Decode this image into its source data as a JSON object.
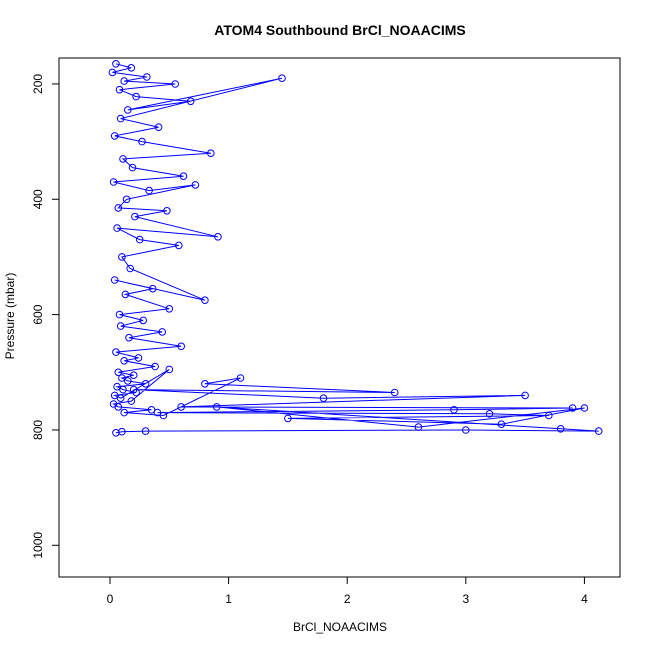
{
  "chart_data": {
    "type": "scatter",
    "title": "ATOM4 Southbound BrCl_NOAACIMS",
    "xlabel": "BrCl_NOAACIMS",
    "ylabel": "Pressure (mbar)",
    "xlim": [
      -0.43,
      4.3
    ],
    "ylim": [
      1055,
      155
    ],
    "y_inverted": true,
    "x_ticks": [
      0,
      1,
      2,
      3,
      4
    ],
    "y_ticks": [
      200,
      400,
      600,
      800,
      1000
    ],
    "grid": false,
    "legend": "none",
    "marker": "open-circle",
    "connect_points": true,
    "color": "#0000ff",
    "series": [
      {
        "x": [
          0.05,
          0.18,
          0.02,
          0.31,
          0.12,
          0.55,
          0.08,
          0.22,
          0.68,
          0.15,
          1.45,
          0.09,
          0.41,
          0.04,
          0.27,
          0.85,
          0.11,
          0.19,
          0.62,
          0.03,
          0.33,
          0.72,
          0.14,
          0.07,
          0.48,
          0.21,
          0.91,
          0.06,
          0.25,
          0.58,
          0.1,
          0.17,
          0.8,
          0.04,
          0.36,
          0.13,
          0.5,
          0.08,
          0.28,
          0.09,
          0.44,
          0.16,
          0.6,
          0.05,
          0.24,
          0.12,
          0.38,
          0.07,
          0.2,
          0.1,
          0.15,
          0.3,
          0.06,
          0.11,
          0.22,
          0.04,
          0.09,
          0.5,
          0.18,
          0.03,
          0.07,
          0.35,
          0.12,
          0.45,
          1.1,
          0.8,
          2.4,
          0.2,
          1.8,
          3.5,
          0.6,
          3.9,
          2.9,
          0.4,
          3.2,
          3.7,
          1.5,
          3.3,
          4.0,
          2.6,
          0.9,
          3.8,
          4.12,
          3.0,
          0.3,
          0.1,
          0.05
        ],
        "y": [
          165,
          172,
          180,
          188,
          195,
          200,
          210,
          222,
          230,
          245,
          190,
          260,
          275,
          290,
          300,
          320,
          330,
          345,
          360,
          370,
          385,
          375,
          400,
          415,
          420,
          430,
          465,
          450,
          470,
          480,
          500,
          520,
          575,
          540,
          555,
          565,
          590,
          600,
          610,
          620,
          630,
          640,
          655,
          665,
          675,
          680,
          690,
          700,
          705,
          710,
          715,
          720,
          725,
          730,
          735,
          740,
          745,
          695,
          750,
          755,
          760,
          765,
          770,
          775,
          710,
          720,
          735,
          730,
          745,
          740,
          760,
          762,
          765,
          770,
          772,
          775,
          780,
          790,
          762,
          795,
          760,
          798,
          802,
          800,
          802,
          803,
          805
        ]
      }
    ]
  }
}
